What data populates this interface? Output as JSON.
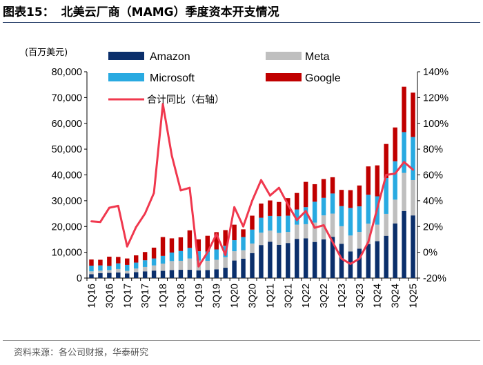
{
  "header": {
    "figure_no": "图表15：",
    "title": "北美云厂商（MAMG）季度资本开支情况"
  },
  "source": "资料来源：各公司财报，华泰研究",
  "chart_data": {
    "type": "bar",
    "stacked": true,
    "unit_label": "(百万美元)",
    "categories": [
      "1Q16",
      "2Q16",
      "3Q16",
      "4Q16",
      "1Q17",
      "2Q17",
      "3Q17",
      "4Q17",
      "1Q18",
      "2Q18",
      "3Q18",
      "4Q18",
      "1Q19",
      "2Q19",
      "3Q19",
      "4Q19",
      "1Q20",
      "2Q20",
      "3Q20",
      "4Q20",
      "1Q21",
      "2Q21",
      "3Q21",
      "4Q21",
      "1Q22",
      "2Q22",
      "3Q22",
      "4Q22",
      "1Q23",
      "2Q23",
      "3Q23",
      "4Q23",
      "1Q24",
      "2Q24",
      "3Q24",
      "4Q24",
      "1Q25"
    ],
    "x_tick_labels": [
      "1Q16",
      "3Q16",
      "1Q17",
      "3Q17",
      "1Q18",
      "3Q18",
      "1Q19",
      "3Q19",
      "1Q20",
      "3Q20",
      "1Q21",
      "3Q21",
      "1Q22",
      "3Q22",
      "1Q23",
      "3Q23",
      "1Q24",
      "3Q24",
      "1Q25"
    ],
    "series": [
      {
        "name": "Amazon",
        "color": "#0b2f6b",
        "values": [
          1500,
          1900,
          2000,
          2200,
          1800,
          2300,
          2600,
          2900,
          2800,
          3100,
          3200,
          3200,
          3000,
          3100,
          3400,
          4000,
          6800,
          7500,
          9700,
          12800,
          14100,
          12900,
          13600,
          15200,
          15400,
          14000,
          15000,
          16000,
          13300,
          10300,
          11400,
          13200,
          14300,
          16400,
          21200,
          26000,
          24300
        ]
      },
      {
        "name": "Meta",
        "color": "#bfbfbf",
        "values": [
          1100,
          1000,
          1100,
          1300,
          1000,
          1400,
          1700,
          2000,
          2800,
          3500,
          3500,
          4400,
          3800,
          3600,
          3700,
          4100,
          3600,
          3300,
          3700,
          4800,
          4300,
          4600,
          4300,
          5500,
          5500,
          7500,
          9300,
          9000,
          6800,
          6200,
          6500,
          7900,
          6400,
          8500,
          9200,
          14800,
          13700
        ]
      },
      {
        "name": "Microsoft",
        "color": "#29aae1",
        "values": [
          2200,
          2000,
          1600,
          2200,
          2300,
          2300,
          2600,
          2700,
          3000,
          3300,
          3800,
          4100,
          3600,
          3600,
          4000,
          4400,
          4300,
          5100,
          5400,
          5800,
          5700,
          6500,
          6300,
          5900,
          6600,
          8100,
          6800,
          7800,
          7800,
          10700,
          9900,
          11200,
          11000,
          13900,
          14900,
          15800,
          16700
        ]
      },
      {
        "name": "Google",
        "color": "#c00000",
        "values": [
          2400,
          2200,
          3600,
          2500,
          2500,
          2800,
          3200,
          4200,
          7300,
          5500,
          5300,
          6800,
          4600,
          6100,
          6700,
          6100,
          6000,
          3000,
          5400,
          5500,
          6000,
          5500,
          6800,
          6400,
          9800,
          6800,
          7300,
          6300,
          6300,
          6900,
          8100,
          11000,
          12000,
          13200,
          13100,
          17600,
          17200
        ]
      }
    ],
    "line_series": {
      "name": "合计同比（右轴）",
      "color": "#f0384e",
      "values": [
        24,
        23.5,
        34.5,
        36,
        4.5,
        19.5,
        30,
        46,
        115,
        75,
        48,
        50,
        -11,
        0,
        14,
        -2,
        35,
        20,
        40,
        56,
        44,
        50,
        37,
        25,
        32,
        19,
        21,
        8,
        -5,
        -9,
        -5,
        8,
        34,
        60,
        61,
        70,
        64
      ]
    },
    "y_left": {
      "min": 0,
      "max": 80000,
      "ticks": [
        "0",
        "10,000",
        "20,000",
        "30,000",
        "40,000",
        "50,000",
        "60,000",
        "70,000",
        "80,000"
      ]
    },
    "y_right": {
      "min": -20,
      "max": 140,
      "ticks": [
        "-20%",
        "0%",
        "20%",
        "40%",
        "60%",
        "80%",
        "100%",
        "120%",
        "140%"
      ]
    },
    "legend": [
      "Amazon",
      "Meta",
      "Microsoft",
      "Google",
      "合计同比（右轴）"
    ]
  }
}
